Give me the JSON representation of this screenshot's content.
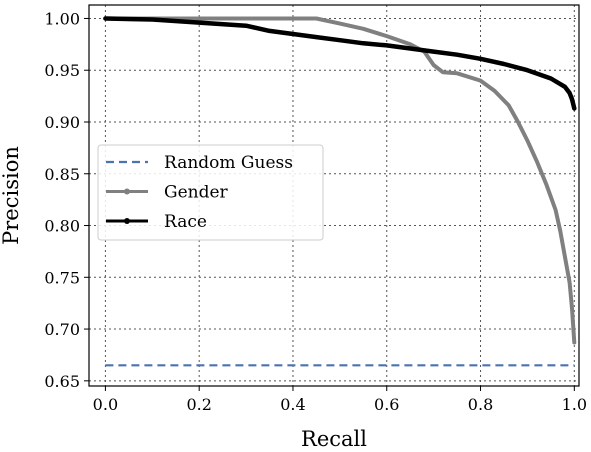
{
  "chart_data": {
    "type": "line",
    "xlabel": "Recall",
    "ylabel": "Precision",
    "xlim": [
      -0.035,
      1.01
    ],
    "ylim": [
      0.645,
      1.013
    ],
    "xticks": [
      "0.0",
      "0.2",
      "0.4",
      "0.6",
      "0.8",
      "1.0"
    ],
    "yticks": [
      "0.65",
      "0.70",
      "0.75",
      "0.80",
      "0.85",
      "0.90",
      "0.95",
      "1.00"
    ],
    "grid": true,
    "legend_position": "center-left",
    "series": [
      {
        "name": "Random Guess",
        "color": "#4c72b0",
        "style": "dashed",
        "x": [
          0.0,
          1.0
        ],
        "y": [
          0.665,
          0.665
        ]
      },
      {
        "name": "Gender",
        "color": "#808080",
        "style": "solid-marker",
        "x": [
          0.0,
          0.1,
          0.2,
          0.3,
          0.4,
          0.45,
          0.5,
          0.55,
          0.6,
          0.65,
          0.68,
          0.7,
          0.72,
          0.75,
          0.8,
          0.83,
          0.86,
          0.88,
          0.9,
          0.92,
          0.94,
          0.96,
          0.97,
          0.98,
          0.99,
          0.995,
          1.0
        ],
        "y": [
          1.0,
          1.0,
          1.0,
          1.0,
          1.0,
          1.0,
          0.995,
          0.99,
          0.983,
          0.975,
          0.968,
          0.955,
          0.948,
          0.947,
          0.94,
          0.93,
          0.916,
          0.9,
          0.882,
          0.862,
          0.84,
          0.815,
          0.795,
          0.77,
          0.745,
          0.72,
          0.687
        ]
      },
      {
        "name": "Race",
        "color": "#000000",
        "style": "solid-marker",
        "x": [
          0.0,
          0.1,
          0.2,
          0.3,
          0.35,
          0.4,
          0.45,
          0.5,
          0.55,
          0.6,
          0.65,
          0.7,
          0.75,
          0.8,
          0.85,
          0.9,
          0.95,
          0.98,
          0.99,
          0.995,
          1.0
        ],
        "y": [
          1.0,
          0.999,
          0.996,
          0.993,
          0.988,
          0.985,
          0.982,
          0.979,
          0.976,
          0.974,
          0.971,
          0.968,
          0.965,
          0.961,
          0.956,
          0.95,
          0.942,
          0.934,
          0.928,
          0.922,
          0.913
        ]
      }
    ]
  }
}
